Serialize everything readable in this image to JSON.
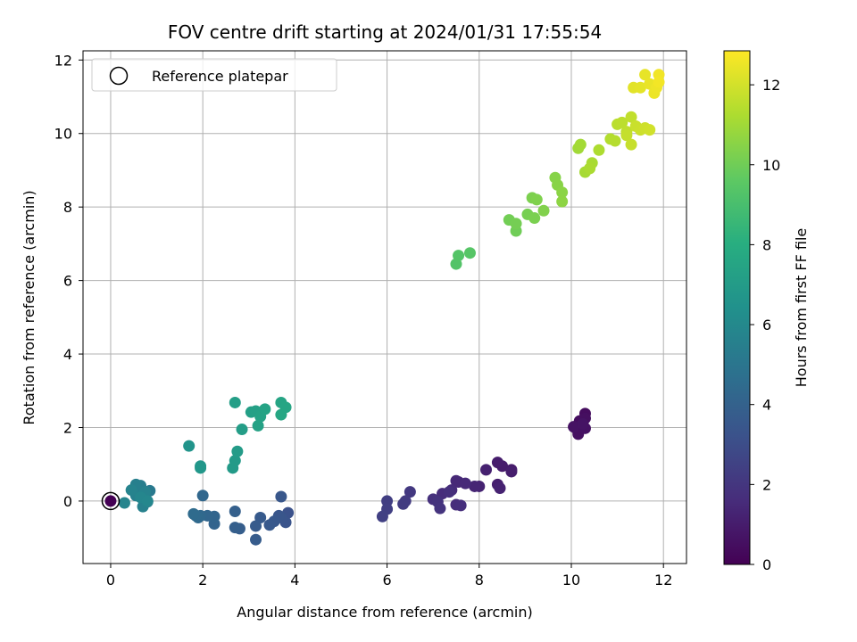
{
  "chart_data": {
    "type": "scatter",
    "title": "FOV centre drift starting at 2024/01/31 17:55:54",
    "xlabel": "Angular distance from reference (arcmin)",
    "ylabel": "Rotation from reference (arcmin)",
    "xlim": [
      -0.6,
      12.5
    ],
    "ylim": [
      -1.7,
      12.25
    ],
    "xticks": [
      0,
      2,
      4,
      6,
      8,
      10,
      12
    ],
    "yticks": [
      0,
      2,
      4,
      6,
      8,
      10,
      12
    ],
    "grid": true,
    "legend": {
      "placement": "top-left",
      "entries": [
        "Reference platepar"
      ]
    },
    "colorbar": {
      "label": "Hours from first FF file",
      "range": [
        0,
        12.85
      ],
      "ticks": [
        0,
        2,
        4,
        6,
        8,
        10,
        12
      ],
      "colormap": "viridis"
    },
    "reference_point": {
      "x": 0,
      "y": 0,
      "c": 0
    },
    "points": [
      {
        "x": 10.1,
        "y": 1.98,
        "c": 0.3
      },
      {
        "x": 10.2,
        "y": 2.05,
        "c": 0.35
      },
      {
        "x": 10.3,
        "y": 2.38,
        "c": 0.4
      },
      {
        "x": 10.18,
        "y": 2.18,
        "c": 0.45
      },
      {
        "x": 10.3,
        "y": 2.25,
        "c": 0.5
      },
      {
        "x": 10.15,
        "y": 1.82,
        "c": 0.55
      },
      {
        "x": 10.3,
        "y": 1.98,
        "c": 0.6
      },
      {
        "x": 10.05,
        "y": 2.02,
        "c": 0.62
      },
      {
        "x": 10.25,
        "y": 2.1,
        "c": 0.65
      },
      {
        "x": 8.7,
        "y": 0.85,
        "c": 0.9
      },
      {
        "x": 8.5,
        "y": 0.95,
        "c": 0.95
      },
      {
        "x": 8.4,
        "y": 1.05,
        "c": 1.0
      },
      {
        "x": 8.7,
        "y": 0.8,
        "c": 1.05
      },
      {
        "x": 8.4,
        "y": 0.45,
        "c": 1.1
      },
      {
        "x": 8.15,
        "y": 0.85,
        "c": 1.15
      },
      {
        "x": 8.45,
        "y": 0.35,
        "c": 1.2
      },
      {
        "x": 8.0,
        "y": 0.4,
        "c": 1.25
      },
      {
        "x": 7.9,
        "y": 0.4,
        "c": 1.3
      },
      {
        "x": 7.55,
        "y": 0.52,
        "c": 1.4
      },
      {
        "x": 7.5,
        "y": 0.55,
        "c": 1.45
      },
      {
        "x": 7.7,
        "y": 0.48,
        "c": 1.5
      },
      {
        "x": 7.4,
        "y": 0.3,
        "c": 1.55
      },
      {
        "x": 7.2,
        "y": 0.2,
        "c": 1.6
      },
      {
        "x": 7.5,
        "y": -0.1,
        "c": 1.65
      },
      {
        "x": 7.6,
        "y": -0.12,
        "c": 1.7
      },
      {
        "x": 7.35,
        "y": 0.25,
        "c": 1.75
      },
      {
        "x": 7.0,
        "y": 0.05,
        "c": 1.8
      },
      {
        "x": 7.1,
        "y": -0.02,
        "c": 1.85
      },
      {
        "x": 7.15,
        "y": -0.2,
        "c": 1.9
      },
      {
        "x": 6.5,
        "y": 0.25,
        "c": 2.1
      },
      {
        "x": 6.4,
        "y": 0.0,
        "c": 2.2
      },
      {
        "x": 6.35,
        "y": -0.08,
        "c": 2.25
      },
      {
        "x": 6.0,
        "y": 0.0,
        "c": 2.35
      },
      {
        "x": 6.0,
        "y": -0.22,
        "c": 2.4
      },
      {
        "x": 5.9,
        "y": -0.42,
        "c": 2.45
      },
      {
        "x": 3.85,
        "y": -0.32,
        "c": 3.2
      },
      {
        "x": 3.8,
        "y": -0.58,
        "c": 3.3
      },
      {
        "x": 3.7,
        "y": -0.45,
        "c": 3.35
      },
      {
        "x": 3.65,
        "y": -0.4,
        "c": 3.4
      },
      {
        "x": 3.7,
        "y": 0.12,
        "c": 3.45
      },
      {
        "x": 3.55,
        "y": -0.55,
        "c": 3.5
      },
      {
        "x": 3.45,
        "y": -0.65,
        "c": 3.55
      },
      {
        "x": 3.25,
        "y": -0.45,
        "c": 3.6
      },
      {
        "x": 3.15,
        "y": -0.68,
        "c": 3.65
      },
      {
        "x": 3.15,
        "y": -1.05,
        "c": 3.7
      },
      {
        "x": 2.8,
        "y": -0.75,
        "c": 3.8
      },
      {
        "x": 2.7,
        "y": -0.72,
        "c": 3.85
      },
      {
        "x": 2.7,
        "y": -0.28,
        "c": 3.9
      },
      {
        "x": 2.25,
        "y": -0.62,
        "c": 4.1
      },
      {
        "x": 2.25,
        "y": -0.42,
        "c": 4.15
      },
      {
        "x": 2.1,
        "y": -0.4,
        "c": 4.2
      },
      {
        "x": 2.0,
        "y": 0.15,
        "c": 4.25
      },
      {
        "x": 1.95,
        "y": -0.4,
        "c": 4.3
      },
      {
        "x": 1.9,
        "y": -0.45,
        "c": 4.35
      },
      {
        "x": 1.85,
        "y": -0.4,
        "c": 4.4
      },
      {
        "x": 1.8,
        "y": -0.35,
        "c": 4.45
      },
      {
        "x": 0.85,
        "y": 0.28,
        "c": 5.2
      },
      {
        "x": 0.8,
        "y": -0.02,
        "c": 5.3
      },
      {
        "x": 0.7,
        "y": 0.05,
        "c": 5.35
      },
      {
        "x": 0.65,
        "y": 0.42,
        "c": 5.4
      },
      {
        "x": 0.6,
        "y": 0.3,
        "c": 5.45
      },
      {
        "x": 0.55,
        "y": 0.45,
        "c": 5.5
      },
      {
        "x": 0.55,
        "y": 0.15,
        "c": 5.55
      },
      {
        "x": 0.7,
        "y": -0.15,
        "c": 5.6
      },
      {
        "x": 0.75,
        "y": 0.25,
        "c": 5.65
      },
      {
        "x": 0.45,
        "y": 0.3,
        "c": 5.7
      },
      {
        "x": 0.3,
        "y": -0.05,
        "c": 5.75
      },
      {
        "x": 0.65,
        "y": 0.1,
        "c": 5.85
      },
      {
        "x": 0.8,
        "y": 0.0,
        "c": 5.9
      },
      {
        "x": 1.7,
        "y": 1.5,
        "c": 6.6
      },
      {
        "x": 1.95,
        "y": 0.95,
        "c": 6.7
      },
      {
        "x": 1.95,
        "y": 0.9,
        "c": 6.75
      },
      {
        "x": 2.65,
        "y": 0.9,
        "c": 6.9
      },
      {
        "x": 2.7,
        "y": 1.1,
        "c": 6.95
      },
      {
        "x": 2.75,
        "y": 1.35,
        "c": 7.0
      },
      {
        "x": 2.85,
        "y": 1.95,
        "c": 7.1
      },
      {
        "x": 2.7,
        "y": 2.68,
        "c": 7.15
      },
      {
        "x": 3.05,
        "y": 2.42,
        "c": 7.2
      },
      {
        "x": 3.15,
        "y": 2.45,
        "c": 7.25
      },
      {
        "x": 3.2,
        "y": 2.05,
        "c": 7.3
      },
      {
        "x": 3.25,
        "y": 2.3,
        "c": 7.35
      },
      {
        "x": 3.35,
        "y": 2.5,
        "c": 7.4
      },
      {
        "x": 3.7,
        "y": 2.68,
        "c": 7.5
      },
      {
        "x": 3.8,
        "y": 2.55,
        "c": 7.55
      },
      {
        "x": 3.7,
        "y": 2.35,
        "c": 7.6
      },
      {
        "x": 7.5,
        "y": 6.45,
        "c": 9.3
      },
      {
        "x": 7.55,
        "y": 6.68,
        "c": 9.35
      },
      {
        "x": 7.8,
        "y": 6.75,
        "c": 9.4
      },
      {
        "x": 8.8,
        "y": 7.35,
        "c": 10.0
      },
      {
        "x": 8.65,
        "y": 7.65,
        "c": 10.05
      },
      {
        "x": 8.8,
        "y": 7.55,
        "c": 10.1
      },
      {
        "x": 9.05,
        "y": 7.8,
        "c": 10.15
      },
      {
        "x": 9.2,
        "y": 7.7,
        "c": 10.2
      },
      {
        "x": 9.15,
        "y": 8.25,
        "c": 10.25
      },
      {
        "x": 9.25,
        "y": 8.2,
        "c": 10.3
      },
      {
        "x": 9.4,
        "y": 7.9,
        "c": 10.35
      },
      {
        "x": 9.65,
        "y": 8.8,
        "c": 10.45
      },
      {
        "x": 9.7,
        "y": 8.6,
        "c": 10.5
      },
      {
        "x": 9.8,
        "y": 8.4,
        "c": 10.55
      },
      {
        "x": 9.8,
        "y": 8.15,
        "c": 10.6
      },
      {
        "x": 10.15,
        "y": 9.6,
        "c": 11.0
      },
      {
        "x": 10.2,
        "y": 9.7,
        "c": 11.05
      },
      {
        "x": 10.3,
        "y": 8.95,
        "c": 11.1
      },
      {
        "x": 10.45,
        "y": 9.2,
        "c": 11.15
      },
      {
        "x": 10.4,
        "y": 9.05,
        "c": 11.2
      },
      {
        "x": 10.6,
        "y": 9.55,
        "c": 11.25
      },
      {
        "x": 10.85,
        "y": 9.85,
        "c": 11.35
      },
      {
        "x": 10.95,
        "y": 9.8,
        "c": 11.4
      },
      {
        "x": 11.0,
        "y": 10.25,
        "c": 11.5
      },
      {
        "x": 11.1,
        "y": 10.3,
        "c": 11.55
      },
      {
        "x": 11.2,
        "y": 10.05,
        "c": 11.6
      },
      {
        "x": 11.3,
        "y": 10.45,
        "c": 11.65
      },
      {
        "x": 11.2,
        "y": 9.95,
        "c": 11.7
      },
      {
        "x": 11.3,
        "y": 9.7,
        "c": 11.75
      },
      {
        "x": 11.4,
        "y": 10.2,
        "c": 11.8
      },
      {
        "x": 11.5,
        "y": 10.1,
        "c": 11.85
      },
      {
        "x": 11.6,
        "y": 10.15,
        "c": 11.9
      },
      {
        "x": 11.7,
        "y": 10.1,
        "c": 11.95
      },
      {
        "x": 11.35,
        "y": 11.25,
        "c": 12.3
      },
      {
        "x": 11.5,
        "y": 11.25,
        "c": 12.35
      },
      {
        "x": 11.6,
        "y": 11.6,
        "c": 12.4
      },
      {
        "x": 11.7,
        "y": 11.35,
        "c": 12.45
      },
      {
        "x": 11.8,
        "y": 11.1,
        "c": 12.5
      },
      {
        "x": 11.85,
        "y": 11.25,
        "c": 12.55
      },
      {
        "x": 11.9,
        "y": 11.6,
        "c": 12.6
      },
      {
        "x": 11.9,
        "y": 11.4,
        "c": 12.65
      }
    ]
  }
}
